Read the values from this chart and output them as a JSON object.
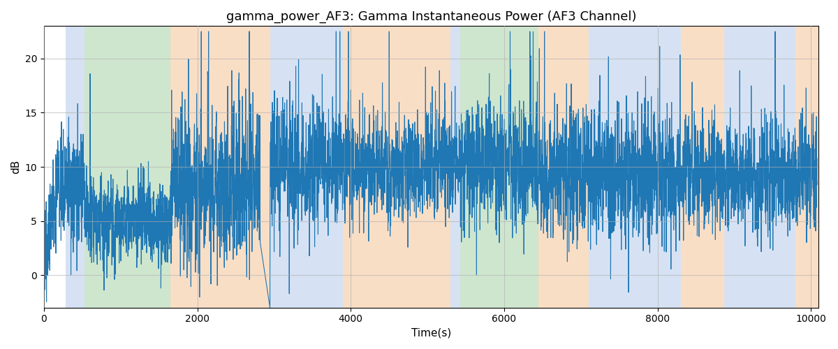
{
  "title": "gamma_power_AF3: Gamma Instantaneous Power (AF3 Channel)",
  "xlabel": "Time(s)",
  "ylabel": "dB",
  "xlim": [
    0,
    10100
  ],
  "ylim": [
    -3,
    23
  ],
  "yticks": [
    0,
    5,
    10,
    15,
    20
  ],
  "xticks": [
    0,
    2000,
    4000,
    6000,
    8000,
    10000
  ],
  "line_color": "#1f77b4",
  "line_width": 0.8,
  "title_fontsize": 13,
  "label_fontsize": 11,
  "grid_color": "#b0b0b0",
  "grid_alpha": 0.6,
  "background_color": "#ffffff",
  "bands": [
    {
      "xmin": 280,
      "xmax": 530,
      "color": "#aec6e8",
      "alpha": 0.5
    },
    {
      "xmin": 530,
      "xmax": 1650,
      "color": "#9ecf9e",
      "alpha": 0.5
    },
    {
      "xmin": 1650,
      "xmax": 2950,
      "color": "#f5c9a0",
      "alpha": 0.6
    },
    {
      "xmin": 2950,
      "xmax": 3800,
      "color": "#aec6e8",
      "alpha": 0.5
    },
    {
      "xmin": 3800,
      "xmax": 3900,
      "color": "#aec6e8",
      "alpha": 0.5
    },
    {
      "xmin": 3900,
      "xmax": 5300,
      "color": "#f5c9a0",
      "alpha": 0.6
    },
    {
      "xmin": 5300,
      "xmax": 5430,
      "color": "#aec6e8",
      "alpha": 0.5
    },
    {
      "xmin": 5430,
      "xmax": 6450,
      "color": "#9ecf9e",
      "alpha": 0.5
    },
    {
      "xmin": 6450,
      "xmax": 7100,
      "color": "#f5c9a0",
      "alpha": 0.6
    },
    {
      "xmin": 7100,
      "xmax": 8300,
      "color": "#aec6e8",
      "alpha": 0.5
    },
    {
      "xmin": 8300,
      "xmax": 8870,
      "color": "#f5c9a0",
      "alpha": 0.6
    },
    {
      "xmin": 8870,
      "xmax": 9800,
      "color": "#aec6e8",
      "alpha": 0.5
    },
    {
      "xmin": 9800,
      "xmax": 10100,
      "color": "#f5c9a0",
      "alpha": 0.6
    }
  ],
  "seed": 42,
  "n_points": 5000,
  "x_start": 1,
  "x_end": 10080
}
